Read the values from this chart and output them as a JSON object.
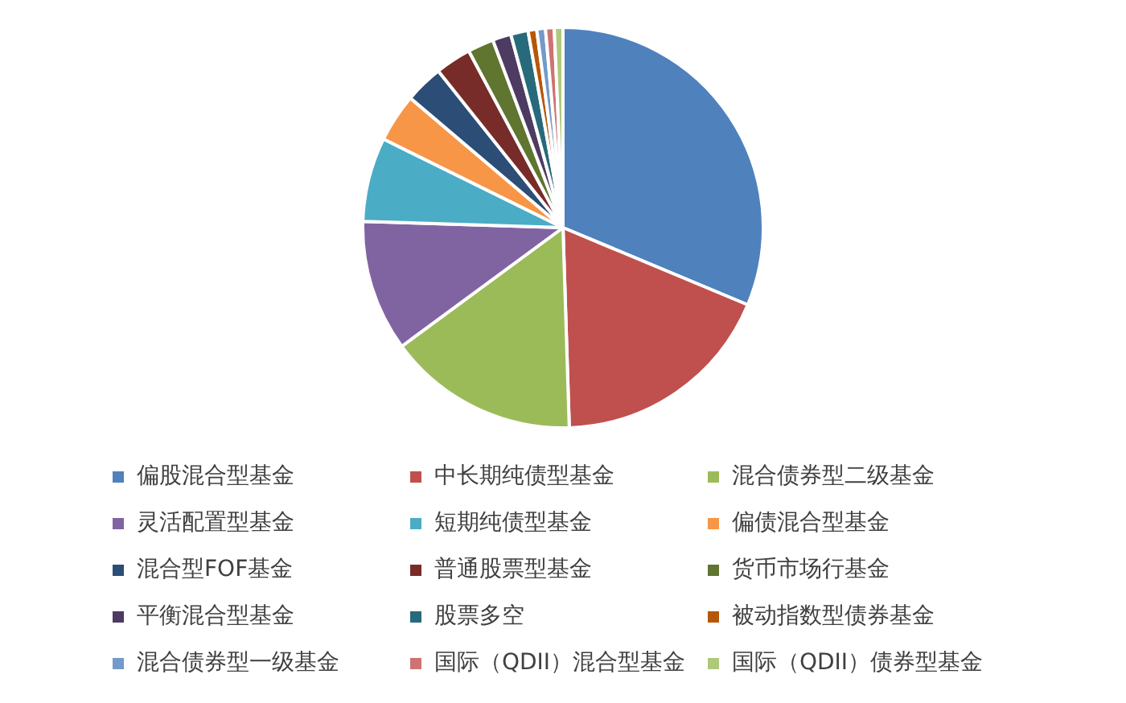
{
  "chart_data": {
    "type": "pie",
    "categories": [
      "偏股混合型基金",
      "中长期纯债型基金",
      "混合债券型二级基金",
      "灵活配置型基金",
      "短期纯债型基金",
      "偏债混合型基金",
      "混合型FOF基金",
      "普通股票型基金",
      "货币市场行基金",
      "平衡混合型基金",
      "股票多空",
      "被动指数型债券基金",
      "混合债券型一级基金",
      "国际（QDII）混合型基金",
      "国际（QDII）债券型基金"
    ],
    "values": [
      31.3,
      18.2,
      15.4,
      10.6,
      6.8,
      3.9,
      3.1,
      2.9,
      2.1,
      1.5,
      1.4,
      0.7,
      0.7,
      0.7,
      0.7
    ],
    "colors": [
      "#4f81bd",
      "#c0504d",
      "#9bbb59",
      "#8064a2",
      "#4bacc6",
      "#f79646",
      "#2c4d75",
      "#772c2a",
      "#5f7530",
      "#4d3b62",
      "#276a7c",
      "#b65708",
      "#729aca",
      "#cd7371",
      "#afc97a"
    ],
    "legend": "bottom"
  }
}
